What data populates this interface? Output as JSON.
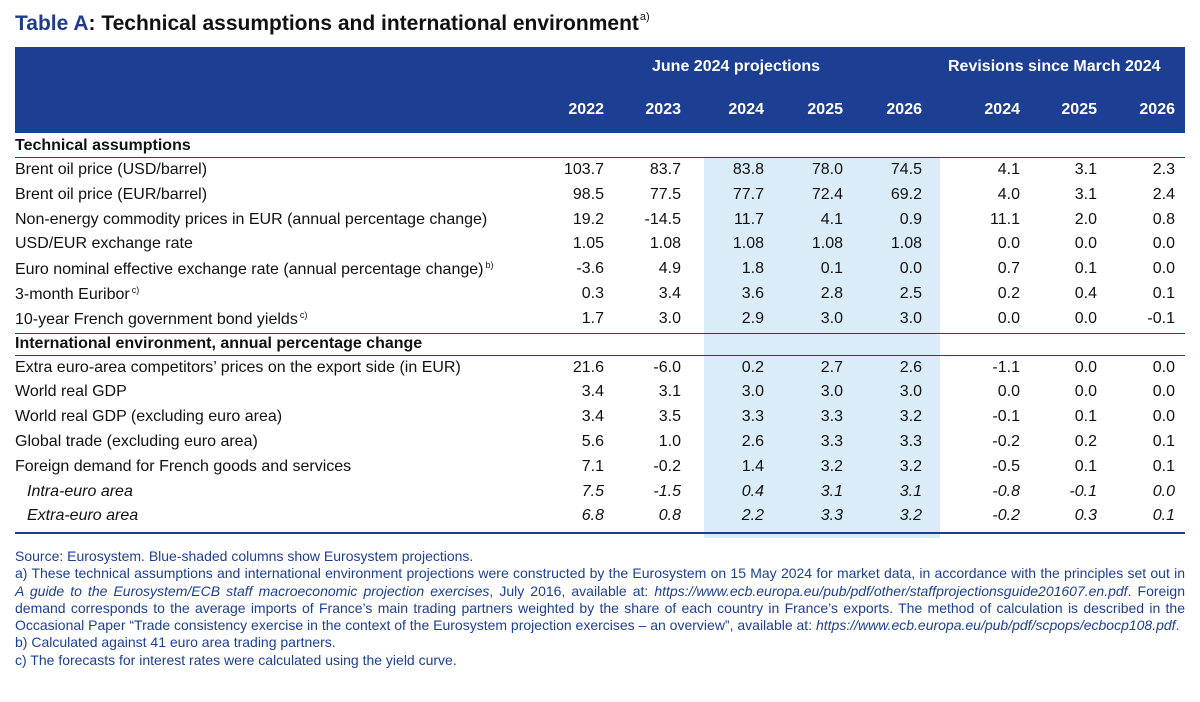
{
  "title": {
    "prefix": "Table A",
    "text": ": Technical assumptions and international environment",
    "footnote_mark": "a)"
  },
  "header": {
    "group_projections": "June 2024 projections",
    "group_revisions": "Revisions since March 2024",
    "years": [
      "2022",
      "2023",
      "2024",
      "2025",
      "2026",
      "2024",
      "2025",
      "2026"
    ]
  },
  "sections": [
    {
      "title": "Technical assumptions",
      "rows": [
        {
          "label": "Brent oil price (USD/barrel)",
          "note": "",
          "values": [
            "103.7",
            "83.7",
            "83.8",
            "78.0",
            "74.5",
            "4.1",
            "3.1",
            "2.3"
          ]
        },
        {
          "label": "Brent oil price (EUR/barrel)",
          "note": "",
          "values": [
            "98.5",
            "77.5",
            "77.7",
            "72.4",
            "69.2",
            "4.0",
            "3.1",
            "2.4"
          ]
        },
        {
          "label": "Non-energy commodity prices in EUR (annual percentage change)",
          "note": "",
          "values": [
            "19.2",
            "-14.5",
            "11.7",
            "4.1",
            "0.9",
            "11.1",
            "2.0",
            "0.8"
          ]
        },
        {
          "label": "USD/EUR exchange rate",
          "note": "",
          "values": [
            "1.05",
            "1.08",
            "1.08",
            "1.08",
            "1.08",
            "0.0",
            "0.0",
            "0.0"
          ]
        },
        {
          "label": "Euro nominal effective exchange rate (annual percentage change)",
          "note": "b)",
          "values": [
            "-3.6",
            "4.9",
            "1.8",
            "0.1",
            "0.0",
            "0.7",
            "0.1",
            "0.0"
          ]
        },
        {
          "label": "3-month Euribor",
          "note": "c)",
          "values": [
            "0.3",
            "3.4",
            "3.6",
            "2.8",
            "2.5",
            "0.2",
            "0.4",
            "0.1"
          ]
        },
        {
          "label": "10-year French government bond yields",
          "note": "c)",
          "values": [
            "1.7",
            "3.0",
            "2.9",
            "3.0",
            "3.0",
            "0.0",
            "0.0",
            "-0.1"
          ]
        }
      ]
    },
    {
      "title": "International environment, annual percentage change",
      "rows": [
        {
          "label": "Extra euro-area competitors’ prices on the export side (in EUR)",
          "note": "",
          "values": [
            "21.6",
            "-6.0",
            "0.2",
            "2.7",
            "2.6",
            "-1.1",
            "0.0",
            "0.0"
          ]
        },
        {
          "label": "World real GDP",
          "note": "",
          "values": [
            "3.4",
            "3.1",
            "3.0",
            "3.0",
            "3.0",
            "0.0",
            "0.0",
            "0.0"
          ]
        },
        {
          "label": "World real GDP (excluding euro area)",
          "note": "",
          "values": [
            "3.4",
            "3.5",
            "3.3",
            "3.3",
            "3.2",
            "-0.1",
            "0.1",
            "0.0"
          ]
        },
        {
          "label": "Global trade (excluding euro area)",
          "note": "",
          "values": [
            "5.6",
            "1.0",
            "2.6",
            "3.3",
            "3.3",
            "-0.2",
            "0.2",
            "0.1"
          ]
        },
        {
          "label": "Foreign demand for French goods and services",
          "note": "",
          "values": [
            "7.1",
            "-0.2",
            "1.4",
            "3.2",
            "3.2",
            "-0.5",
            "0.1",
            "0.1"
          ]
        },
        {
          "label": "Intra-euro area",
          "note": "",
          "italic": true,
          "values": [
            "7.5",
            "-1.5",
            "0.4",
            "3.1",
            "3.1",
            "-0.8",
            "-0.1",
            "0.0"
          ]
        },
        {
          "label": "Extra-euro area",
          "note": "",
          "italic": true,
          "values": [
            "6.8",
            "0.8",
            "2.2",
            "3.3",
            "3.2",
            "-0.2",
            "0.3",
            "0.1"
          ]
        }
      ]
    }
  ],
  "notes": {
    "source": "Source: Eurosystem. Blue-shaded columns show Eurosystem projections.",
    "a_1": "a) These technical assumptions and international environment projections were constructed by the Eurosystem on 15 May 2024 for market data, in accordance with the principles set out in ",
    "a_guide": "A guide to the Eurosystem/ECB staff macroeconomic projection exercises",
    "a_2": ", July 2016, available at: ",
    "a_url1": "https://www.ecb.europa.eu/pub/pdf/other/staffprojectionsguide201607.en.pdf",
    "a_3": ". Foreign demand corresponds to the average imports of France’s main trading partners weighted by the share of each country in France’s exports. The method of calculation is described in the Occasional Paper “Trade consistency exercise in the context of the Eurosystem projection exercises – an overview”, available at: ",
    "a_url2": "https://www.ecb.europa.eu/pub/pdf/scpops/ecbocp108.pdf",
    "a_4": ".",
    "b": "b)  Calculated against 41 euro area trading partners.",
    "c": "c)  The forecasts for interest rates were calculated using the yield curve."
  }
}
